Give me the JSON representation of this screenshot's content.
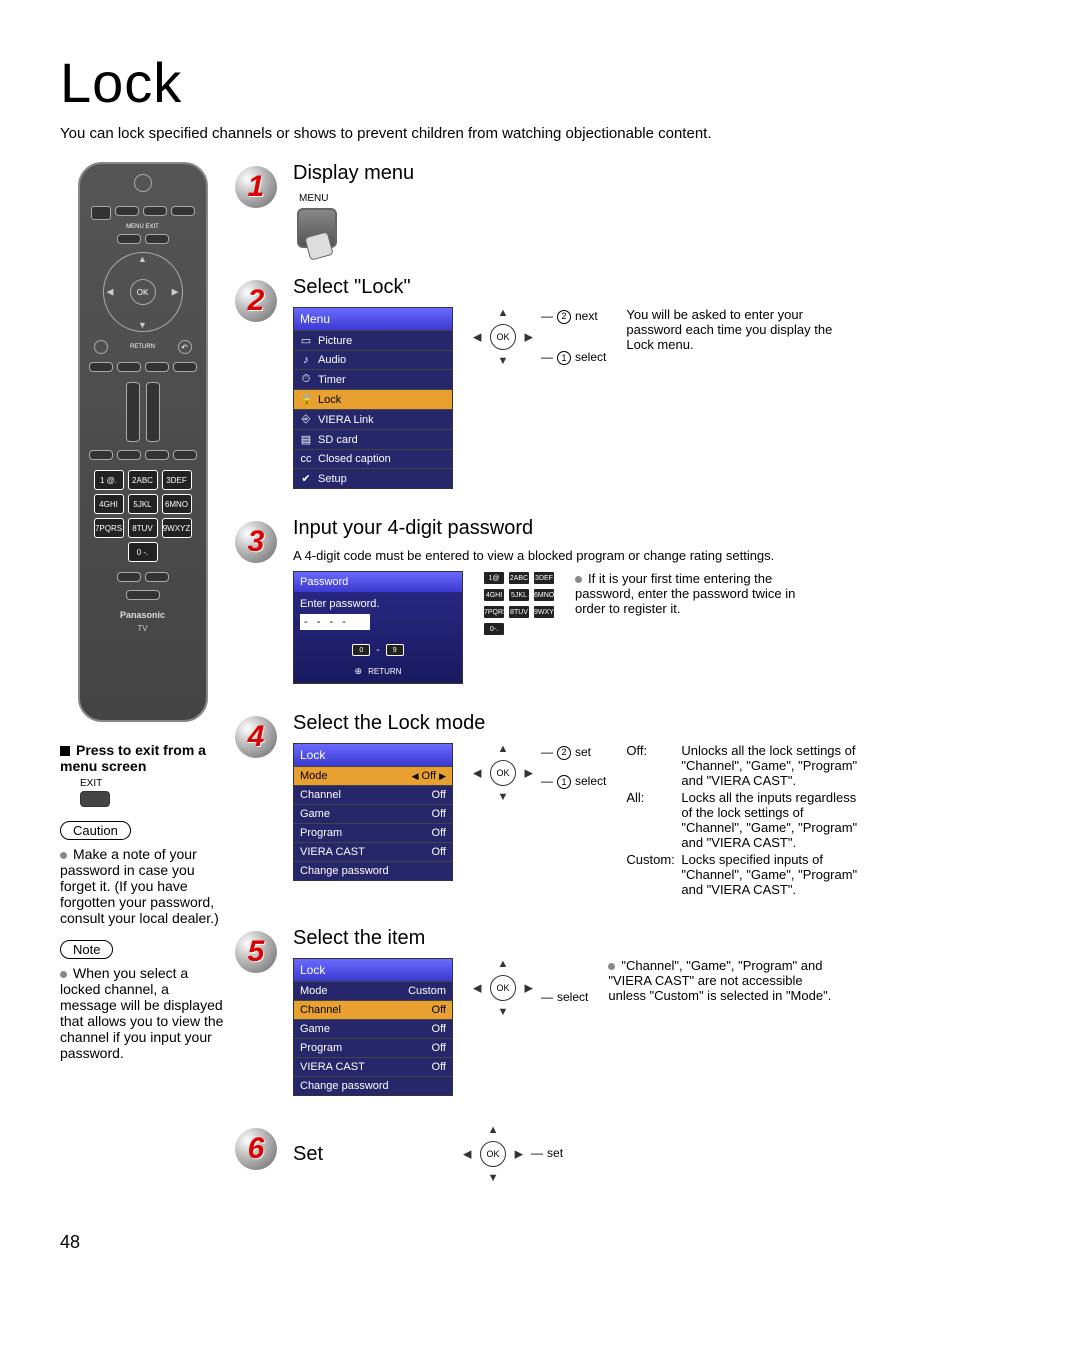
{
  "page": {
    "title": "Lock",
    "intro": "You can lock specified channels or shows to prevent children from watching objectionable content.",
    "number": "48"
  },
  "remote": {
    "ok": "OK",
    "menu_exit": "MENU  EXIT",
    "return": "RETURN",
    "keys": [
      "1 @.",
      "2ABC",
      "3DEF",
      "4GHI",
      "5JKL",
      "6MNO",
      "7PQRS",
      "8TUV",
      "9WXYZ",
      "0 -."
    ],
    "brand": "Panasonic",
    "tv": "TV"
  },
  "sidebar": {
    "exit_heading": "Press to exit from a menu screen",
    "exit_small": "EXIT",
    "caution_label": "Caution",
    "caution_text": "Make a note of your password in case you forget it. (If you have forgotten your password, consult your local dealer.)",
    "note_label": "Note",
    "note_text": "When you select a locked channel, a message will be displayed that allows you to view the channel if you input your password."
  },
  "steps": {
    "s1": {
      "num": "1",
      "title": "Display menu",
      "menu_label": "MENU"
    },
    "s2": {
      "num": "2",
      "title": "Select \"Lock\"",
      "menu_header": "Menu",
      "items": [
        {
          "icon": "▭",
          "label": "Picture"
        },
        {
          "icon": "♪",
          "label": "Audio"
        },
        {
          "icon": "⏱",
          "label": "Timer"
        },
        {
          "icon": "🔒",
          "label": "Lock",
          "sel": true
        },
        {
          "icon": "⎆",
          "label": "VIERA Link"
        },
        {
          "icon": "▤",
          "label": "SD card"
        },
        {
          "icon": "cc",
          "label": "Closed caption"
        },
        {
          "icon": "✔",
          "label": "Setup"
        }
      ],
      "nav": {
        "ok": "OK",
        "next": "next",
        "select": "select"
      },
      "desc": "You will be asked to enter your password each time you display the Lock menu."
    },
    "s3": {
      "num": "3",
      "title": "Input your 4-digit password",
      "sub": "A 4-digit code must be entered to view a blocked program or change rating settings.",
      "pwd_header": "Password",
      "pwd_prompt": "Enter password.",
      "pwd_dots": "- - - -",
      "range": "0  -  9",
      "return": "RETURN",
      "keys": [
        "1@",
        "2ABC",
        "3DEF",
        "4GHI",
        "5JKL",
        "6MNO",
        "7PQRS",
        "8TUV",
        "9WXYZ",
        "0-."
      ],
      "desc": "If it is your first time entering the password, enter the password twice in order to register it."
    },
    "s4": {
      "num": "4",
      "title": "Select the Lock mode",
      "header": "Lock",
      "rows": [
        {
          "k": "Mode",
          "v": "Off",
          "sel": true,
          "arrows": true
        },
        {
          "k": "Channel",
          "v": "Off"
        },
        {
          "k": "Game",
          "v": "Off"
        },
        {
          "k": "Program",
          "v": "Off"
        },
        {
          "k": "VIERA CAST",
          "v": "Off"
        }
      ],
      "footer": "Change password",
      "nav": {
        "ok": "OK",
        "set": "set",
        "select": "select"
      },
      "modes": [
        {
          "k": "Off:",
          "v": "Unlocks all the lock settings of \"Channel\", \"Game\", \"Program\" and \"VIERA CAST\"."
        },
        {
          "k": "All:",
          "v": "Locks all the inputs regardless of the lock settings of \"Channel\", \"Game\", \"Program\" and \"VIERA CAST\"."
        },
        {
          "k": "Custom:",
          "v": "Locks specified inputs of \"Channel\", \"Game\", \"Program\" and \"VIERA CAST\"."
        }
      ]
    },
    "s5": {
      "num": "5",
      "title": "Select the item",
      "header": "Lock",
      "rows": [
        {
          "k": "Mode",
          "v": "Custom"
        },
        {
          "k": "Channel",
          "v": "Off",
          "sel": true
        },
        {
          "k": "Game",
          "v": "Off"
        },
        {
          "k": "Program",
          "v": "Off"
        },
        {
          "k": "VIERA CAST",
          "v": "Off"
        }
      ],
      "footer": "Change password",
      "nav": {
        "ok": "OK",
        "select": "select"
      },
      "desc": "\"Channel\", \"Game\", \"Program\" and \"VIERA CAST\" are not accessible unless \"Custom\" is selected in \"Mode\"."
    },
    "s6": {
      "num": "6",
      "title": "Set",
      "nav": {
        "ok": "OK",
        "set": "set"
      }
    }
  }
}
